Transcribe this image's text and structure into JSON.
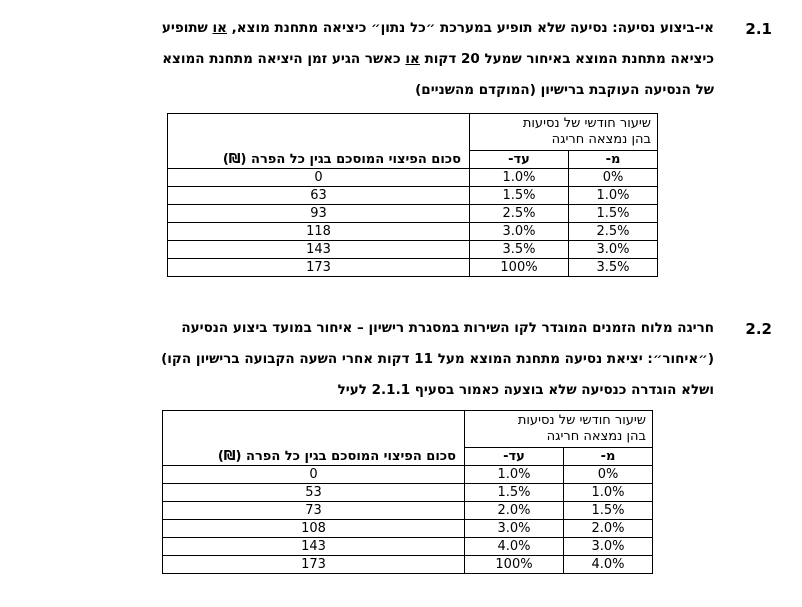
{
  "sections": [
    {
      "number": "2.1",
      "lines": [
        "אי-ביצוע נסיעה: נסיעה שלא תופיע במערכת ״כל נתון״ כיציאה מתחנת מוצא, או שתופיע",
        "כיציאה מתחנת המוצא באיחור שמעל 20 דקות או כאשר הגיע זמן היציאה מתחנת המוצא",
        "של הנסיעה העוקבת ברישיון (המוקדם מהשניים)"
      ],
      "table": {
        "group_header_line1": "שיעור חודשי של נסיעות",
        "group_header_line2": "בהן נמצאה חריגה",
        "from_header": "מ-",
        "to_header": "עד-",
        "amount_header": "סכום הפיצוי המוסכם בגין כל הפרה (₪)",
        "rows": [
          {
            "from": "0%",
            "to": "1.0%",
            "amount": "0"
          },
          {
            "from": "1.0%",
            "to": "1.5%",
            "amount": "63"
          },
          {
            "from": "1.5%",
            "to": "2.5%",
            "amount": "93"
          },
          {
            "from": "2.5%",
            "to": "3.0%",
            "amount": "118"
          },
          {
            "from": "3.0%",
            "to": "3.5%",
            "amount": "143"
          },
          {
            "from": "3.5%",
            "to": "100%",
            "amount": "173"
          }
        ]
      }
    },
    {
      "number": "2.2",
      "lines": [
        "חריגה מלוח הזמנים המוגדר לקו השירות במסגרת רישיון – איחור במועד ביצוע הנסיעה",
        "(״איחור״: יציאת נסיעה מתחנת המוצא מעל 11 דקות אחרי השעה הקבועה ברישיון הקו)",
        "ושלא הוגדרה כנסיעה שלא בוצעה כאמור בסעיף 2.1.1 לעיל"
      ],
      "table": {
        "group_header_line1": "שיעור חודשי של נסיעות",
        "group_header_line2": "בהן נמצאה חריגה",
        "from_header": "מ-",
        "to_header": "עד-",
        "amount_header": "סכום הפיצוי המוסכם בגין כל הפרה (₪)",
        "rows": [
          {
            "from": "0%",
            "to": "1.0%",
            "amount": "0"
          },
          {
            "from": "1.0%",
            "to": "1.5%",
            "amount": "53"
          },
          {
            "from": "1.5%",
            "to": "2.0%",
            "amount": "73"
          },
          {
            "from": "2.0%",
            "to": "3.0%",
            "amount": "108"
          },
          {
            "from": "3.0%",
            "to": "4.0%",
            "amount": "143"
          },
          {
            "from": "4.0%",
            "to": "100%",
            "amount": "173"
          }
        ]
      }
    }
  ]
}
